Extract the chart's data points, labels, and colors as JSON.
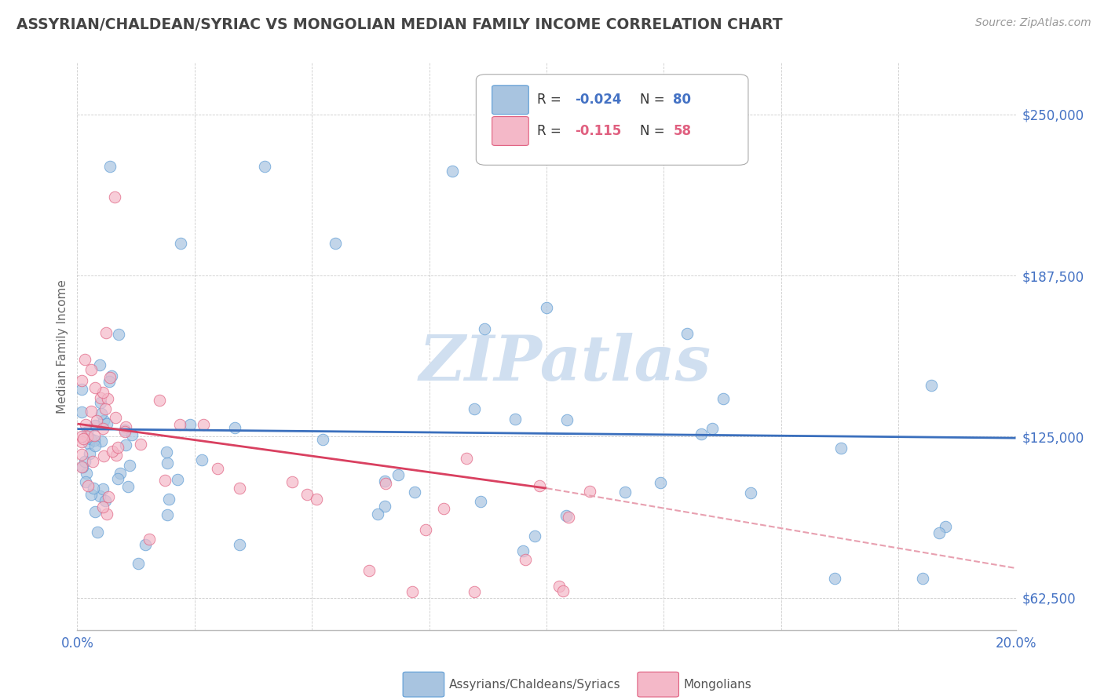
{
  "title": "ASSYRIAN/CHALDEAN/SYRIAC VS MONGOLIAN MEDIAN FAMILY INCOME CORRELATION CHART",
  "source": "Source: ZipAtlas.com",
  "ylabel": "Median Family Income",
  "xlim": [
    0.0,
    0.2
  ],
  "ylim": [
    50000,
    265000
  ],
  "yticks": [
    62500,
    125000,
    187500,
    250000
  ],
  "ytick_labels": [
    "$62,500",
    "$125,000",
    "$187,500",
    "$250,000"
  ],
  "blue_color": "#a8c4e0",
  "blue_edge_color": "#5b9bd5",
  "pink_color": "#f4b8c8",
  "pink_edge_color": "#e06080",
  "blue_line_color": "#3a6fbd",
  "pink_line_color": "#d94060",
  "pink_dash_color": "#e8a0b0",
  "title_color": "#444444",
  "axis_label_color": "#666666",
  "tick_color": "#4472c4",
  "background_color": "#ffffff",
  "grid_color": "#cccccc",
  "watermark": "ZIPatlas",
  "watermark_color": "#d0dff0"
}
